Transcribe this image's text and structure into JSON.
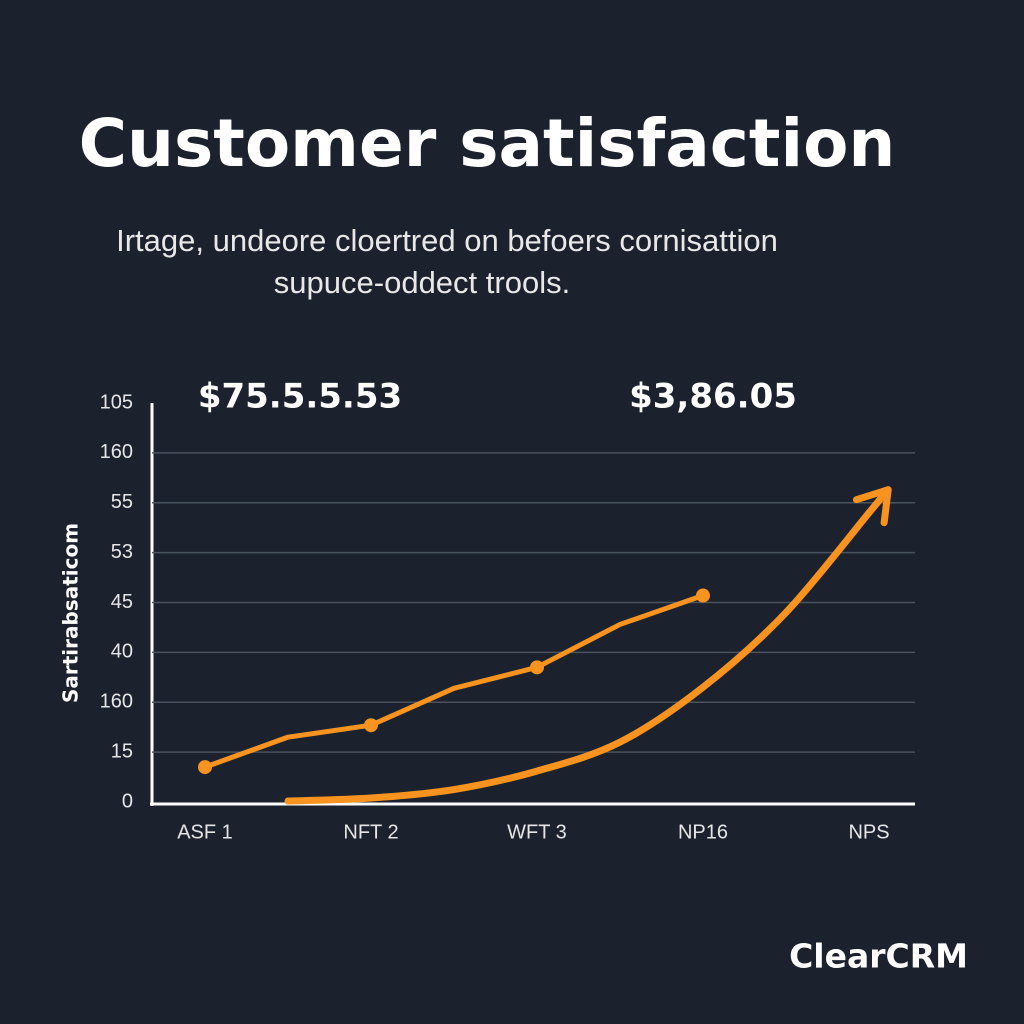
{
  "chart_data": {
    "type": "line",
    "title": "Customer satisfaction",
    "subtitle": [
      "Irtage, undeore cloertred on befoers cornisattion",
      "supuce-oddect trools."
    ],
    "y_label": "Sartirabsaticom",
    "annotations": [
      "$75.5.5.53",
      "$3,86.05"
    ],
    "brand": "ClearCRM",
    "categories": [
      "ASF 1",
      null,
      "NFT 2",
      null,
      "WFT 3",
      null,
      "NP16",
      null,
      "NPS"
    ],
    "series": [
      {
        "color": "#f7931e",
        "values": [
          0.7,
          1.3,
          1.54,
          2.28,
          2.7,
          3.56,
          4.14,
          null,
          null
        ]
      },
      {
        "color": "#f7931e",
        "values": [
          null,
          0.02,
          0.08,
          0.25,
          0.62,
          1.2,
          2.3,
          3.8,
          5.8
        ]
      }
    ],
    "ylim": [
      0,
      8
    ],
    "yticks": [
      {
        "value": 0,
        "label": "0"
      },
      {
        "value": 1,
        "label": "15"
      },
      {
        "value": 2,
        "label": "160"
      },
      {
        "value": 3,
        "label": "40"
      },
      {
        "value": 4,
        "label": "45"
      },
      {
        "value": 5,
        "label": "53"
      },
      {
        "value": 6,
        "label": "55"
      },
      {
        "value": 7,
        "label": "160"
      },
      {
        "value": 8,
        "label": "105"
      }
    ],
    "grid": true
  }
}
